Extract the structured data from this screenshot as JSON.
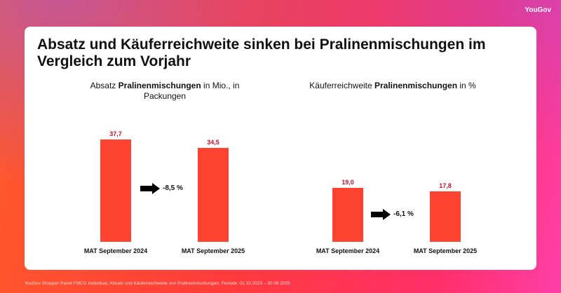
{
  "brand": "YouGov",
  "title": "Absatz und Käuferreichweite sinken bei Pralinenmischungen im Vergleich zum Vorjahr",
  "footer": "YouGov Shopper Panel FMCG Individual, Absatz und Käuferreichweite von Pralinenmischungen, Periode: 01.10.2023 – 30.09.2025",
  "chart_data": [
    {
      "type": "bar",
      "title_pre": "Absatz ",
      "title_bold": "Pralinenmischungen",
      "title_post": " in Mio., in Packungen",
      "categories": [
        "MAT September 2024",
        "MAT September 2025"
      ],
      "values": [
        37.7,
        34.5
      ],
      "labels": [
        "37,7",
        "34,5"
      ],
      "change": "-8,5 %",
      "ylim": [
        0,
        40
      ]
    },
    {
      "type": "bar",
      "title_pre": "Käuferreichweite ",
      "title_bold": "Pralinenmischungen",
      "title_post": " in %",
      "categories": [
        "MAT September 2024",
        "MAT September 2025"
      ],
      "values": [
        19.0,
        17.8
      ],
      "labels": [
        "19,0",
        "17,8"
      ],
      "change": "-6,1 %",
      "ylim": [
        0,
        38
      ]
    }
  ],
  "colors": {
    "bar": "#fe4430",
    "label": "#c8102e"
  }
}
